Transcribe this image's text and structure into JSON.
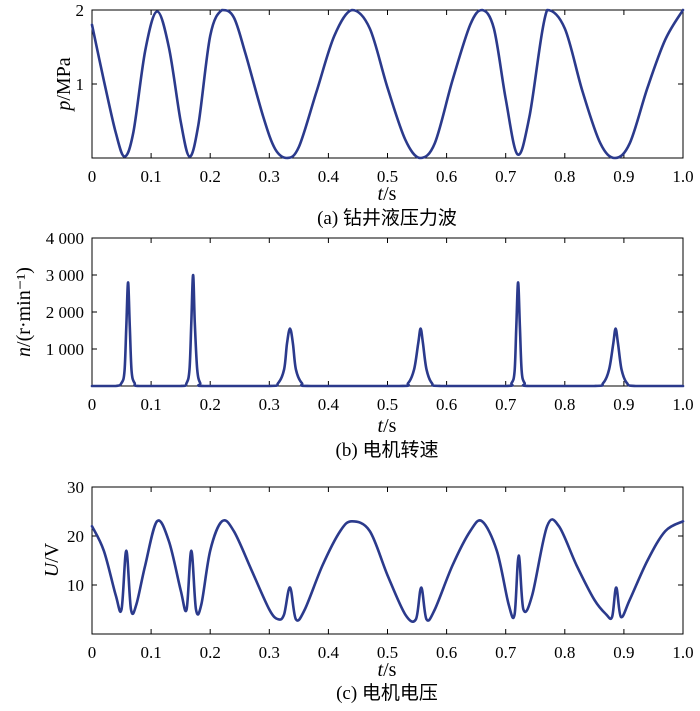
{
  "chart_data": [
    {
      "type": "line",
      "caption": "(a) 钻井液压力波",
      "ylabel_var": "p",
      "ylabel_unit": "/MPa",
      "xlabel_var": "t",
      "xlabel_unit": "/s",
      "xlim": [
        0,
        1.0
      ],
      "ylim": [
        0,
        2
      ],
      "xticks": [
        "0",
        "0.1",
        "0.2",
        "0.3",
        "0.4",
        "0.5",
        "0.6",
        "0.7",
        "0.8",
        "0.9",
        "1.0"
      ],
      "yticks": [
        {
          "v": 1,
          "label": "1"
        },
        {
          "v": 2,
          "label": "2"
        }
      ],
      "color": "#2b3a8c",
      "series": [
        {
          "x": [
            0,
            0.02,
            0.04,
            0.055,
            0.07,
            0.09,
            0.11,
            0.13,
            0.15,
            0.165,
            0.18,
            0.2,
            0.22,
            0.24,
            0.26,
            0.29,
            0.31,
            0.33,
            0.35,
            0.38,
            0.41,
            0.44,
            0.47,
            0.5,
            0.53,
            0.555,
            0.58,
            0.61,
            0.64,
            0.66,
            0.68,
            0.7,
            0.72,
            0.74,
            0.77,
            0.8,
            0.83,
            0.86,
            0.885,
            0.91,
            0.94,
            0.97,
            1.0
          ],
          "y": [
            1.8,
            1.05,
            0.35,
            0.02,
            0.35,
            1.45,
            1.98,
            1.5,
            0.5,
            0.02,
            0.45,
            1.65,
            2.0,
            1.9,
            1.4,
            0.55,
            0.12,
            0.0,
            0.15,
            0.9,
            1.65,
            2.0,
            1.75,
            0.95,
            0.25,
            0.0,
            0.2,
            1.05,
            1.8,
            2.0,
            1.75,
            0.8,
            0.05,
            0.55,
            2.0,
            1.75,
            0.9,
            0.2,
            0.0,
            0.2,
            0.95,
            1.6,
            2.0
          ]
        }
      ]
    },
    {
      "type": "line",
      "caption": "(b) 电机转速",
      "ylabel_var": "n",
      "ylabel_unit": "/(r·min⁻¹)",
      "xlabel_var": "t",
      "xlabel_unit": "/s",
      "xlim": [
        0,
        1.0
      ],
      "ylim": [
        0,
        4000
      ],
      "xticks": [
        "0",
        "0.1",
        "0.2",
        "0.3",
        "0.4",
        "0.5",
        "0.6",
        "0.7",
        "0.8",
        "0.9",
        "1.0"
      ],
      "yticks": [
        {
          "v": 1000,
          "label": "1 000"
        },
        {
          "v": 2000,
          "label": "2 000"
        },
        {
          "v": 3000,
          "label": "3 000"
        },
        {
          "v": 4000,
          "label": "4 000"
        }
      ],
      "color": "#2b3a8c",
      "series": [
        {
          "x": [
            0,
            0.04,
            0.05,
            0.055,
            0.058,
            0.061,
            0.064,
            0.067,
            0.072,
            0.08,
            0.15,
            0.16,
            0.165,
            0.168,
            0.171,
            0.174,
            0.178,
            0.183,
            0.19,
            0.3,
            0.315,
            0.325,
            0.33,
            0.335,
            0.34,
            0.345,
            0.355,
            0.37,
            0.52,
            0.535,
            0.545,
            0.552,
            0.556,
            0.56,
            0.566,
            0.575,
            0.59,
            0.7,
            0.71,
            0.715,
            0.718,
            0.721,
            0.724,
            0.727,
            0.732,
            0.74,
            0.85,
            0.865,
            0.875,
            0.882,
            0.886,
            0.89,
            0.896,
            0.905,
            0.92,
            1.0
          ],
          "y": [
            0,
            0,
            80,
            400,
            1600,
            2800,
            1600,
            400,
            80,
            0,
            0,
            80,
            450,
            1700,
            3000,
            1700,
            450,
            80,
            0,
            0,
            80,
            450,
            1150,
            1550,
            1150,
            450,
            80,
            0,
            0,
            80,
            450,
            1150,
            1550,
            1150,
            450,
            80,
            0,
            0,
            80,
            400,
            1600,
            2800,
            1600,
            400,
            80,
            0,
            0,
            80,
            450,
            1150,
            1550,
            1150,
            450,
            80,
            0,
            0
          ]
        }
      ]
    },
    {
      "type": "line",
      "caption": "(c) 电机电压",
      "ylabel_var": "U",
      "ylabel_unit": "/V",
      "xlabel_var": "t",
      "xlabel_unit": "/s",
      "xlim": [
        0,
        1.0
      ],
      "ylim": [
        0,
        30
      ],
      "xticks": [
        "0",
        "0.1",
        "0.2",
        "0.3",
        "0.4",
        "0.5",
        "0.6",
        "0.7",
        "0.8",
        "0.9",
        "1.0"
      ],
      "yticks": [
        {
          "v": 10,
          "label": "10"
        },
        {
          "v": 20,
          "label": "20"
        },
        {
          "v": 30,
          "label": "30"
        }
      ],
      "color": "#2b3a8c",
      "series": [
        {
          "x": [
            0,
            0.02,
            0.04,
            0.05,
            0.058,
            0.066,
            0.075,
            0.09,
            0.11,
            0.13,
            0.15,
            0.16,
            0.168,
            0.176,
            0.185,
            0.2,
            0.22,
            0.24,
            0.27,
            0.3,
            0.315,
            0.325,
            0.335,
            0.345,
            0.36,
            0.39,
            0.42,
            0.44,
            0.47,
            0.5,
            0.53,
            0.548,
            0.557,
            0.566,
            0.58,
            0.61,
            0.64,
            0.66,
            0.685,
            0.705,
            0.715,
            0.722,
            0.73,
            0.745,
            0.77,
            0.79,
            0.82,
            0.85,
            0.87,
            0.88,
            0.887,
            0.895,
            0.91,
            0.94,
            0.97,
            1.0
          ],
          "y": [
            22,
            17,
            8,
            5,
            17,
            5,
            6,
            14,
            23,
            19,
            9,
            5,
            17,
            5,
            6,
            17,
            23,
            21,
            13,
            5,
            3,
            4,
            9.5,
            3,
            5,
            14,
            21,
            23,
            21,
            12,
            4,
            3,
            9.5,
            3,
            5,
            14,
            21,
            23,
            17,
            6,
            4,
            16,
            5,
            8,
            22,
            22,
            14,
            7,
            4,
            3.5,
            9.5,
            3.5,
            7,
            15,
            21,
            23
          ]
        }
      ]
    }
  ]
}
